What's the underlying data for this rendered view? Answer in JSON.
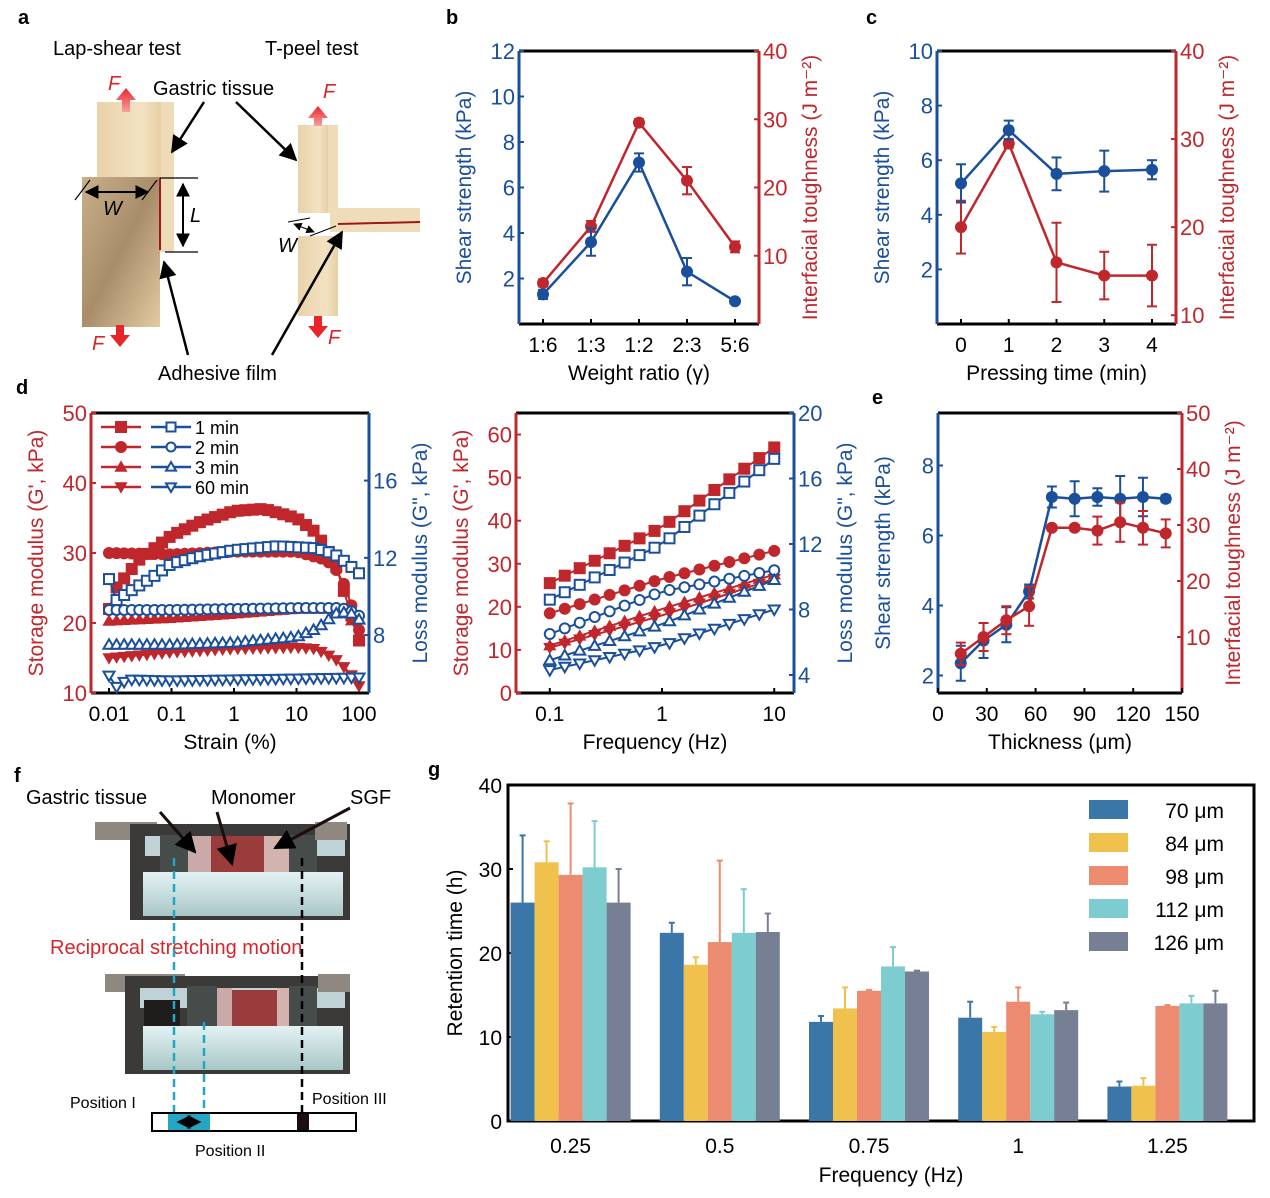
{
  "panel_labels": {
    "a": "a",
    "b": "b",
    "c": "c",
    "d": "d",
    "e": "e",
    "f": "f",
    "g": "g"
  },
  "colors": {
    "red": "#c0272d",
    "blue": "#1a4f9c",
    "black": "#000000"
  },
  "panel_a": {
    "lap_shear_title": "Lap-shear test",
    "t_peel_title": "T-peel test",
    "gastric_tissue": "Gastric tissue",
    "adhesive_film": "Adhesive film",
    "force": "F",
    "width": "W",
    "length": "L"
  },
  "panel_f": {
    "gastric_tissue": "Gastric tissue",
    "monomer": "Monomer",
    "sgf": "SGF",
    "motion": "Reciprocal stretching motion",
    "position_1": "Position I",
    "position_2": "Position II",
    "position_3": "Position III"
  },
  "chart_data": [
    {
      "id": "b",
      "type": "line",
      "title": "",
      "xlabel": "Weight ratio (γ)",
      "categories": [
        "1:6",
        "1:3",
        "1:2",
        "2:3",
        "5:6"
      ],
      "y_left": {
        "label": "Shear strength (kPa)",
        "range": [
          0,
          12
        ],
        "ticks": [
          2,
          4,
          6,
          8,
          10,
          12
        ]
      },
      "y_right": {
        "label": "Interfacial toughness (J m⁻²)",
        "range": [
          0,
          40
        ],
        "ticks": [
          10,
          20,
          30,
          40
        ]
      },
      "series": [
        {
          "name": "Shear strength",
          "axis": "left",
          "color": "blue",
          "values": [
            1.3,
            3.6,
            7.1,
            2.3,
            1.0
          ],
          "errors": [
            0.2,
            0.6,
            0.4,
            0.6,
            0.1
          ]
        },
        {
          "name": "Interfacial toughness",
          "axis": "right",
          "color": "red",
          "values": [
            6,
            14.3,
            29.5,
            21,
            11.3
          ],
          "errors": [
            0.5,
            0.8,
            0.5,
            2,
            0.8
          ]
        }
      ]
    },
    {
      "id": "c",
      "type": "line",
      "xlabel": "Pressing time (min)",
      "categories": [
        "0",
        "1",
        "2",
        "3",
        "4"
      ],
      "y_left": {
        "label": "Shear strength (kPa)",
        "range": [
          0,
          10
        ],
        "ticks": [
          2,
          4,
          6,
          8,
          10
        ]
      },
      "y_right": {
        "label": "Interfacial toughness (J m⁻²)",
        "range": [
          9,
          40
        ],
        "ticks": [
          10,
          20,
          30,
          40
        ]
      },
      "series": [
        {
          "name": "Shear strength",
          "axis": "left",
          "color": "blue",
          "values": [
            5.15,
            7.1,
            5.5,
            5.6,
            5.65
          ],
          "errors": [
            0.7,
            0.35,
            0.6,
            0.75,
            0.35
          ]
        },
        {
          "name": "Interfacial toughness",
          "axis": "right",
          "color": "red",
          "values": [
            20,
            29.5,
            16,
            14.5,
            14.5
          ],
          "errors": [
            3,
            0.5,
            4.5,
            2.7,
            3.5
          ]
        }
      ]
    },
    {
      "id": "d1",
      "type": "scatter",
      "xlabel": "Strain (%)",
      "x_scale": "log",
      "x_ticks": [
        "0.01",
        "0.1",
        "1",
        "10",
        "100"
      ],
      "x_range": [
        0.01,
        100
      ],
      "y_left": {
        "label": "Storage modulus (G', kPa)",
        "range": [
          10,
          50
        ],
        "ticks": [
          10,
          20,
          30,
          40,
          50
        ]
      },
      "y_right": {
        "label": "Loss modulus (G\", kPa)",
        "range": [
          5,
          19.5
        ],
        "ticks": [
          8,
          12,
          16
        ]
      },
      "legend": [
        "1 min",
        "2 min",
        "3 min",
        "60 min"
      ],
      "legend_position": "top-left",
      "series": [
        {
          "name": "1 min G'",
          "axis": "left",
          "marker": "square-filled",
          "color": "red",
          "anchors": [
            [
              0.01,
              22
            ],
            [
              0.013,
              25
            ],
            [
              0.02,
              27
            ],
            [
              0.03,
              29
            ],
            [
              0.05,
              30.5
            ],
            [
              0.1,
              32.5
            ],
            [
              0.3,
              34.5
            ],
            [
              1,
              36
            ],
            [
              3,
              36.3
            ],
            [
              10,
              35
            ],
            [
              20,
              33
            ],
            [
              40,
              29
            ],
            [
              60,
              24
            ],
            [
              100,
              17.5
            ]
          ]
        },
        {
          "name": "2 min G'",
          "axis": "left",
          "marker": "circle-filled",
          "color": "red",
          "anchors": [
            [
              0.01,
              30
            ],
            [
              0.1,
              29.8
            ],
            [
              1,
              30.2
            ],
            [
              10,
              30.2
            ],
            [
              30,
              29
            ],
            [
              50,
              27
            ],
            [
              70,
              23.5
            ],
            [
              100,
              19
            ]
          ]
        },
        {
          "name": "3 min G'",
          "axis": "left",
          "marker": "triangle-filled",
          "color": "red",
          "anchors": [
            [
              0.01,
              20.3
            ],
            [
              0.1,
              20.7
            ],
            [
              1,
              21.3
            ],
            [
              10,
              22
            ],
            [
              40,
              22
            ],
            [
              70,
              21
            ],
            [
              100,
              18
            ]
          ]
        },
        {
          "name": "60 min G'",
          "axis": "left",
          "marker": "triangle-down-filled",
          "color": "red",
          "anchors": [
            [
              0.01,
              15
            ],
            [
              0.1,
              15.8
            ],
            [
              1,
              16.3
            ],
            [
              10,
              16.5
            ],
            [
              20,
              16.3
            ],
            [
              40,
              15
            ],
            [
              70,
              13
            ],
            [
              100,
              11
            ]
          ]
        },
        {
          "name": "1 min G\"",
          "axis": "right",
          "marker": "square-open",
          "color": "blue",
          "anchors": [
            [
              0.01,
              10.9
            ],
            [
              0.013,
              9.8
            ],
            [
              0.02,
              10.2
            ],
            [
              0.05,
              11
            ],
            [
              0.1,
              11.7
            ],
            [
              0.3,
              12.1
            ],
            [
              1,
              12.4
            ],
            [
              5,
              12.6
            ],
            [
              20,
              12.5
            ],
            [
              40,
              12.2
            ],
            [
              60,
              11.8
            ],
            [
              100,
              11.2
            ]
          ]
        },
        {
          "name": "2 min G\"",
          "axis": "right",
          "marker": "circle-open",
          "color": "blue",
          "anchors": [
            [
              0.01,
              9.3
            ],
            [
              0.1,
              9.3
            ],
            [
              1,
              9.35
            ],
            [
              10,
              9.4
            ],
            [
              50,
              9.4
            ],
            [
              70,
              9.3
            ],
            [
              100,
              9.0
            ]
          ]
        },
        {
          "name": "3 min G\"",
          "axis": "right",
          "marker": "triangle-open",
          "color": "blue",
          "anchors": [
            [
              0.01,
              7.5
            ],
            [
              0.1,
              7.5
            ],
            [
              1,
              7.6
            ],
            [
              10,
              7.9
            ],
            [
              20,
              8.3
            ],
            [
              30,
              8.7
            ],
            [
              40,
              9.1
            ],
            [
              70,
              9.2
            ],
            [
              100,
              8.8
            ]
          ]
        },
        {
          "name": "60 min G\"",
          "axis": "right",
          "marker": "triangle-down-open",
          "color": "blue",
          "anchors": [
            [
              0.01,
              5.9
            ],
            [
              0.013,
              5.3
            ],
            [
              0.02,
              5.7
            ],
            [
              0.1,
              5.65
            ],
            [
              1,
              5.7
            ],
            [
              10,
              5.75
            ],
            [
              100,
              5.8
            ]
          ]
        }
      ]
    },
    {
      "id": "d2",
      "type": "scatter",
      "xlabel": "Frequency (Hz)",
      "x_scale": "log",
      "x_ticks": [
        "0.1",
        "1",
        "10"
      ],
      "x_range": [
        0.05,
        15
      ],
      "y_left": {
        "label": "Storage modulus (G', kPa)",
        "range": [
          0,
          65
        ],
        "ticks": [
          0,
          10,
          20,
          30,
          40,
          50,
          60
        ]
      },
      "y_right": {
        "label": "Loss modulus (G\", kPa)",
        "range": [
          2.9,
          20
        ],
        "ticks": [
          4,
          8,
          12,
          16,
          20
        ]
      },
      "series": [
        {
          "name": "1 min G'",
          "axis": "left",
          "marker": "square-filled",
          "color": "red",
          "anchors": [
            [
              0.1,
              25.5
            ],
            [
              1,
              38.5
            ],
            [
              10,
              57
            ]
          ]
        },
        {
          "name": "2 min G'",
          "axis": "left",
          "marker": "circle-filled",
          "color": "red",
          "anchors": [
            [
              0.1,
              18.5
            ],
            [
              1,
              26.5
            ],
            [
              10,
              33
            ]
          ]
        },
        {
          "name": "3 min G'",
          "axis": "left",
          "marker": "triangle-filled",
          "color": "red",
          "anchors": [
            [
              0.1,
              11
            ],
            [
              1,
              19.5
            ],
            [
              10,
              27.5
            ]
          ]
        },
        {
          "name": "60 min G'",
          "axis": "left",
          "marker": "triangle-down-filled",
          "color": "red",
          "anchors": [
            [
              0.1,
              10.5
            ],
            [
              1,
              18
            ],
            [
              10,
              26.5
            ]
          ]
        },
        {
          "name": "1 min G\"",
          "axis": "right",
          "marker": "square-open",
          "color": "blue",
          "anchors": [
            [
              0.1,
              8.6
            ],
            [
              1,
              12
            ],
            [
              10,
              17.2
            ]
          ]
        },
        {
          "name": "2 min G\"",
          "axis": "right",
          "marker": "circle-open",
          "color": "blue",
          "anchors": [
            [
              0.1,
              6.5
            ],
            [
              1,
              9.1
            ],
            [
              10,
              10.4
            ]
          ]
        },
        {
          "name": "3 min G\"",
          "axis": "right",
          "marker": "triangle-open",
          "color": "blue",
          "anchors": [
            [
              0.1,
              4.9
            ],
            [
              1,
              7.1
            ],
            [
              10,
              9.8
            ]
          ]
        },
        {
          "name": "60 min G\"",
          "axis": "right",
          "marker": "triangle-down-open",
          "color": "blue",
          "anchors": [
            [
              0.1,
              4.3
            ],
            [
              1,
              5.8
            ],
            [
              10,
              8.0
            ]
          ]
        }
      ]
    },
    {
      "id": "e",
      "type": "line",
      "xlabel": "Thickness (μm)",
      "x_range": [
        0,
        150
      ],
      "x_ticks": [
        0,
        30,
        60,
        90,
        120,
        150
      ],
      "x": [
        14,
        28,
        42,
        56,
        70,
        84,
        98,
        112,
        126,
        140
      ],
      "y_left": {
        "label": "Shear strength (kPa)",
        "range": [
          1.5,
          9.5
        ],
        "ticks": [
          2,
          4,
          6,
          8
        ]
      },
      "y_right": {
        "label": "Interfacial toughness (J m⁻²)",
        "range": [
          0,
          50
        ],
        "ticks": [
          10,
          20,
          30,
          40,
          50
        ]
      },
      "series": [
        {
          "name": "Shear strength",
          "axis": "left",
          "color": "blue",
          "values": [
            2.35,
            3.0,
            3.45,
            4.4,
            7.1,
            7.05,
            7.1,
            7.05,
            7.1,
            7.05
          ],
          "errors": [
            0.5,
            0.5,
            0.5,
            0.2,
            0.3,
            0.5,
            0.25,
            0.65,
            0.55,
            0.1
          ]
        },
        {
          "name": "Interfacial toughness",
          "axis": "right",
          "color": "red",
          "values": [
            7,
            10,
            13,
            15.5,
            29.5,
            29.5,
            29,
            30.5,
            29.5,
            28.5
          ],
          "errors": [
            2,
            2.5,
            2.5,
            3.5,
            0.5,
            0.5,
            2.5,
            3.5,
            3,
            2.5
          ]
        }
      ]
    },
    {
      "id": "g",
      "type": "bar",
      "xlabel": "Frequency (Hz)",
      "ylabel": "Retention time (h)",
      "ylim": [
        0,
        40
      ],
      "y_ticks": [
        0,
        10,
        20,
        30,
        40
      ],
      "categories": [
        "0.25",
        "0.5",
        "0.75",
        "1",
        "1.25"
      ],
      "legend_position": "top-right",
      "series": [
        {
          "name": "70 μm",
          "color": "#3b76a8",
          "values": [
            26,
            22.4,
            11.8,
            12.3,
            4.1
          ],
          "errors": [
            8,
            1.2,
            0.7,
            1.9,
            0.6
          ]
        },
        {
          "name": "84 μm",
          "color": "#f0c24d",
          "values": [
            30.8,
            18.6,
            13.4,
            10.6,
            4.2
          ],
          "errors": [
            2.5,
            0.9,
            2.5,
            0.6,
            0.9
          ]
        },
        {
          "name": "98 μm",
          "color": "#ec8b6f",
          "values": [
            29.3,
            21.3,
            15.5,
            14.2,
            13.7
          ],
          "errors": [
            8.5,
            9.7,
            0.1,
            1.7,
            0.1
          ]
        },
        {
          "name": "112 μm",
          "color": "#7dcccf",
          "values": [
            30.2,
            22.4,
            18.4,
            12.7,
            14
          ],
          "errors": [
            5.5,
            5.2,
            2.3,
            0.3,
            0.9
          ]
        },
        {
          "name": "126 μm",
          "color": "#767f94",
          "values": [
            26,
            22.5,
            17.8,
            13.2,
            14
          ],
          "errors": [
            4,
            2.2,
            0.1,
            0.9,
            1.5
          ]
        }
      ]
    }
  ]
}
